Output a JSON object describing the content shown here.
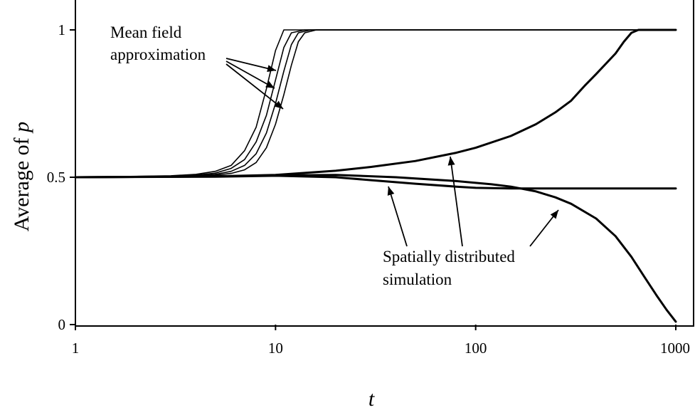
{
  "chart_data": {
    "type": "line",
    "title": "",
    "xlabel": "t",
    "ylabel_prefix": "Average of ",
    "ylabel_var": "p",
    "x_scale": "log",
    "xlim": [
      1,
      1000
    ],
    "ylim": [
      0,
      1
    ],
    "x_tick_labels": [
      "1",
      "10",
      "100",
      "1000"
    ],
    "y_tick_labels": [
      "0",
      "0.5",
      "1"
    ],
    "grid": false,
    "legend": "none",
    "annotations": {
      "mean_field": [
        "Mean field",
        "approximation"
      ],
      "spatial": [
        "Spatially distributed",
        "simulation"
      ]
    },
    "series": [
      {
        "group": "mean_field",
        "x": [
          1,
          3,
          4,
          5,
          6,
          7,
          8,
          9,
          10,
          11,
          13,
          1000
        ],
        "y": [
          0.5,
          0.505,
          0.51,
          0.52,
          0.54,
          0.59,
          0.67,
          0.8,
          0.93,
          1.0,
          1.0,
          1.0
        ]
      },
      {
        "group": "mean_field",
        "x": [
          1,
          3,
          4,
          5,
          6,
          7,
          8,
          9,
          10,
          11,
          12,
          14,
          1000
        ],
        "y": [
          0.5,
          0.503,
          0.507,
          0.514,
          0.53,
          0.56,
          0.62,
          0.71,
          0.83,
          0.94,
          0.99,
          1.0,
          1.0
        ]
      },
      {
        "group": "mean_field",
        "x": [
          1,
          3,
          4,
          5,
          6,
          7,
          8,
          9,
          10,
          11,
          12,
          13,
          15,
          1000
        ],
        "y": [
          0.5,
          0.502,
          0.505,
          0.51,
          0.52,
          0.54,
          0.58,
          0.65,
          0.75,
          0.86,
          0.95,
          0.99,
          1.0,
          1.0
        ]
      },
      {
        "group": "mean_field",
        "x": [
          1,
          3,
          4,
          5,
          6,
          7,
          8,
          9,
          10,
          11,
          12,
          13,
          14,
          16,
          1000
        ],
        "y": [
          0.5,
          0.501,
          0.503,
          0.507,
          0.513,
          0.525,
          0.55,
          0.6,
          0.68,
          0.78,
          0.88,
          0.96,
          0.99,
          1.0,
          1.0
        ]
      },
      {
        "group": "spatial",
        "x": [
          1,
          5,
          10,
          20,
          30,
          50,
          80,
          100,
          150,
          200,
          250,
          300,
          350,
          400,
          500,
          550,
          600,
          650,
          1000
        ],
        "y": [
          0.5,
          0.503,
          0.508,
          0.522,
          0.535,
          0.555,
          0.583,
          0.6,
          0.64,
          0.68,
          0.72,
          0.76,
          0.81,
          0.85,
          0.92,
          0.96,
          0.99,
          1.0,
          1.0
        ]
      },
      {
        "group": "spatial",
        "x": [
          1,
          5,
          10,
          20,
          30,
          50,
          80,
          100,
          150,
          1000
        ],
        "y": [
          0.5,
          0.502,
          0.505,
          0.5,
          0.49,
          0.478,
          0.468,
          0.464,
          0.462,
          0.462
        ]
      },
      {
        "group": "spatial",
        "x": [
          1,
          5,
          10,
          20,
          40,
          80,
          120,
          150,
          200,
          250,
          300,
          400,
          500,
          600,
          700,
          800,
          900,
          1000
        ],
        "y": [
          0.5,
          0.503,
          0.506,
          0.508,
          0.5,
          0.487,
          0.476,
          0.468,
          0.452,
          0.432,
          0.41,
          0.36,
          0.3,
          0.23,
          0.16,
          0.1,
          0.05,
          0.01
        ]
      }
    ]
  }
}
